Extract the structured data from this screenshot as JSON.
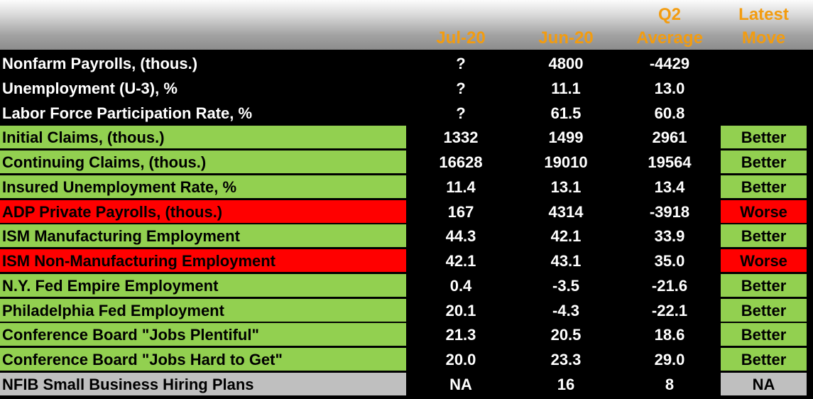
{
  "chart_data": {
    "type": "table",
    "columns": [
      "",
      "Jul-20",
      "Jun-20",
      "Q2 Average",
      "Latest Move"
    ],
    "header": {
      "col1": "Jul-20",
      "col2": "Jun-20",
      "col3_line1": "Q2",
      "col3_line2": "Average",
      "col4_line1": "Latest",
      "col4_line2": "Move"
    },
    "rows": [
      {
        "label": "Nonfarm Payrolls, (thous.)",
        "jul": "?",
        "jun": "4800",
        "q2": "-4429",
        "move": "",
        "status": "none"
      },
      {
        "label": "Unemployment (U-3), %",
        "jul": "?",
        "jun": "11.1",
        "q2": "13.0",
        "move": "",
        "status": "none"
      },
      {
        "label": "Labor Force Participation Rate, %",
        "jul": "?",
        "jun": "61.5",
        "q2": "60.8",
        "move": "",
        "status": "none"
      },
      {
        "label": "Initial Claims, (thous.)",
        "jul": "1332",
        "jun": "1499",
        "q2": "2961",
        "move": "Better",
        "status": "green"
      },
      {
        "label": "Continuing Claims, (thous.)",
        "jul": "16628",
        "jun": "19010",
        "q2": "19564",
        "move": "Better",
        "status": "green"
      },
      {
        "label": "Insured Unemployment Rate, %",
        "jul": "11.4",
        "jun": "13.1",
        "q2": "13.4",
        "move": "Better",
        "status": "green"
      },
      {
        "label": "ADP Private Payrolls, (thous.)",
        "jul": "167",
        "jun": "4314",
        "q2": "-3918",
        "move": "Worse",
        "status": "red"
      },
      {
        "label": "ISM Manufacturing Employment",
        "jul": "44.3",
        "jun": "42.1",
        "q2": "33.9",
        "move": "Better",
        "status": "green"
      },
      {
        "label": "ISM Non-Manufacturing Employment",
        "jul": "42.1",
        "jun": "43.1",
        "q2": "35.0",
        "move": "Worse",
        "status": "red"
      },
      {
        "label": "N.Y. Fed Empire Employment",
        "jul": "0.4",
        "jun": "-3.5",
        "q2": "-21.6",
        "move": "Better",
        "status": "green"
      },
      {
        "label": "Philadelphia Fed Employment",
        "jul": "20.1",
        "jun": "-4.3",
        "q2": "-22.1",
        "move": "Better",
        "status": "green"
      },
      {
        "label": "Conference Board \"Jobs Plentiful\"",
        "jul": "21.3",
        "jun": "20.5",
        "q2": "18.6",
        "move": "Better",
        "status": "green"
      },
      {
        "label": "Conference Board \"Jobs Hard to Get\"",
        "jul": "20.0",
        "jun": "23.3",
        "q2": "29.0",
        "move": "Better",
        "status": "green"
      },
      {
        "label": "NFIB Small Business Hiring Plans",
        "jul": "NA",
        "jun": "16",
        "q2": "8",
        "move": "NA",
        "status": "gray"
      }
    ]
  },
  "colors": {
    "header_text": "#f39c0f",
    "better": "#92d050",
    "worse": "#ff0000",
    "neutral": "#bfbfbf",
    "background": "#000000"
  }
}
